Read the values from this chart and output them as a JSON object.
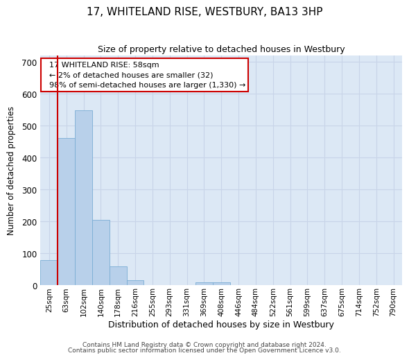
{
  "title": "17, WHITELAND RISE, WESTBURY, BA13 3HP",
  "subtitle": "Size of property relative to detached houses in Westbury",
  "xlabel": "Distribution of detached houses by size in Westbury",
  "ylabel": "Number of detached properties",
  "footer_line1": "Contains HM Land Registry data © Crown copyright and database right 2024.",
  "footer_line2": "Contains public sector information licensed under the Open Government Licence v3.0.",
  "categories": [
    "25sqm",
    "63sqm",
    "102sqm",
    "140sqm",
    "178sqm",
    "216sqm",
    "255sqm",
    "293sqm",
    "331sqm",
    "369sqm",
    "408sqm",
    "446sqm",
    "484sqm",
    "522sqm",
    "561sqm",
    "599sqm",
    "637sqm",
    "675sqm",
    "714sqm",
    "752sqm",
    "790sqm"
  ],
  "values": [
    78,
    462,
    548,
    204,
    58,
    16,
    0,
    0,
    0,
    8,
    8,
    0,
    0,
    0,
    0,
    0,
    0,
    0,
    0,
    0,
    0
  ],
  "bar_color": "#b8d0ea",
  "bar_edge_color": "#7aadd4",
  "highlight_color": "#cc0000",
  "annotation_title": "17 WHITELAND RISE: 58sqm",
  "annotation_line1": "← 2% of detached houses are smaller (32)",
  "annotation_line2": "98% of semi-detached houses are larger (1,330) →",
  "annotation_box_color": "#cc0000",
  "ylim": [
    0,
    720
  ],
  "yticks": [
    0,
    100,
    200,
    300,
    400,
    500,
    600,
    700
  ],
  "grid_color": "#c8d4e8",
  "background_color": "#dce8f5"
}
